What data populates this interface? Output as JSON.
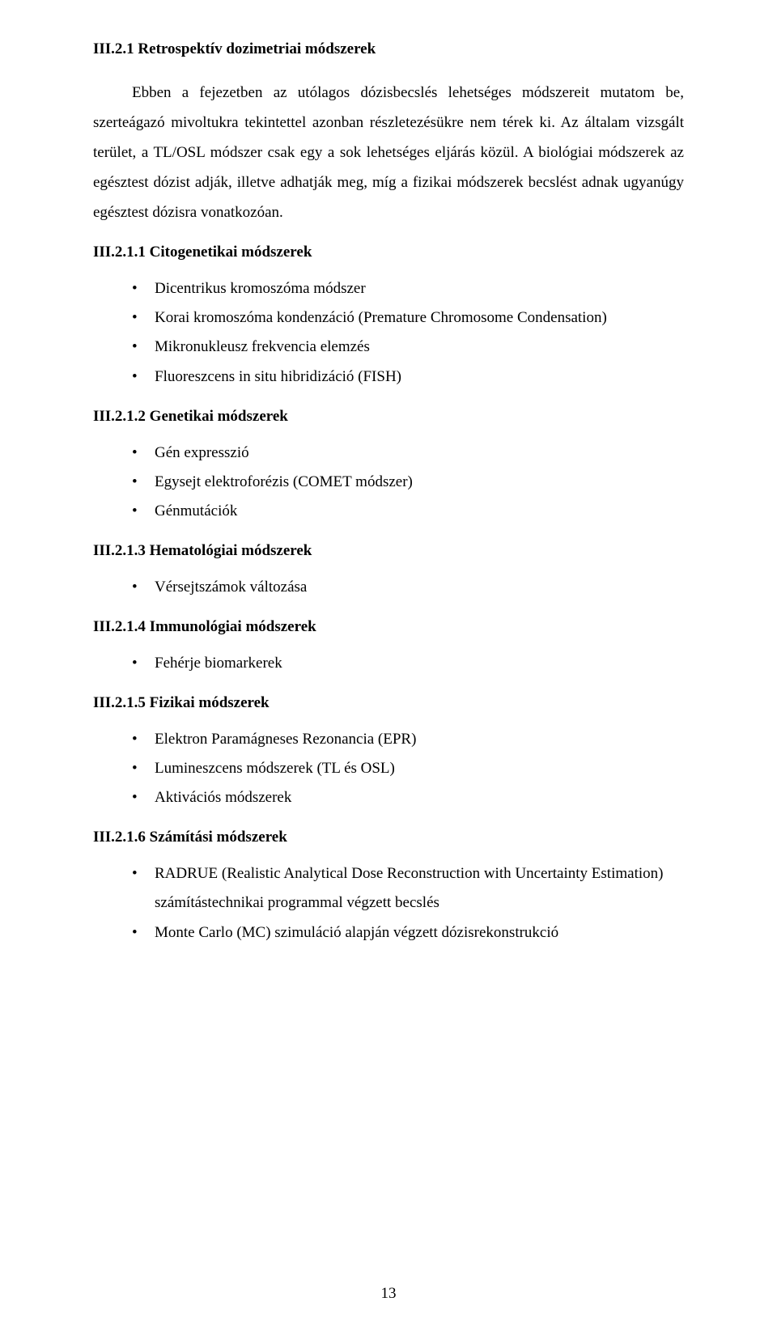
{
  "heading_main": "III.2.1 Retrospektív dozimetriai módszerek",
  "paragraph": "Ebben a fejezetben az utólagos dózisbecslés lehetséges módszereit mutatom be, szerteágazó mivoltukra tekintettel azonban részletezésükre nem térek ki. Az általam vizsgált terület, a TL/OSL módszer csak egy a sok lehetséges eljárás közül. A biológiai módszerek az egésztest dózist adják, illetve adhatják meg, míg a fizikai módszerek becslést adnak ugyanúgy egésztest dózisra vonatkozóan.",
  "sections": [
    {
      "heading": "III.2.1.1 Citogenetikai módszerek",
      "items": [
        "Dicentrikus kromoszóma módszer",
        "Korai kromoszóma kondenzáció (Premature Chromosome Condensation)",
        "Mikronukleusz frekvencia elemzés",
        "Fluoreszcens in situ hibridizáció (FISH)"
      ]
    },
    {
      "heading": "III.2.1.2 Genetikai módszerek",
      "items": [
        "Gén expresszió",
        "Egysejt elektroforézis (COMET módszer)",
        "Génmutációk"
      ]
    },
    {
      "heading": "III.2.1.3 Hematológiai módszerek",
      "items": [
        "Vérsejtszámok változása"
      ]
    },
    {
      "heading": "III.2.1.4 Immunológiai módszerek",
      "items": [
        "Fehérje biomarkerek"
      ]
    },
    {
      "heading": "III.2.1.5 Fizikai módszerek",
      "items": [
        "Elektron Paramágneses Rezonancia (EPR)",
        "Lumineszcens módszerek (TL és OSL)",
        "Aktivációs módszerek"
      ]
    },
    {
      "heading": "III.2.1.6 Számítási módszerek",
      "items": [
        "RADRUE (Realistic Analytical Dose Reconstruction with Uncertainty Estimation) számítástechnikai programmal végzett becslés",
        "Monte Carlo (MC) szimuláció alapján végzett dózisrekonstrukció"
      ]
    }
  ],
  "page_number": "13"
}
